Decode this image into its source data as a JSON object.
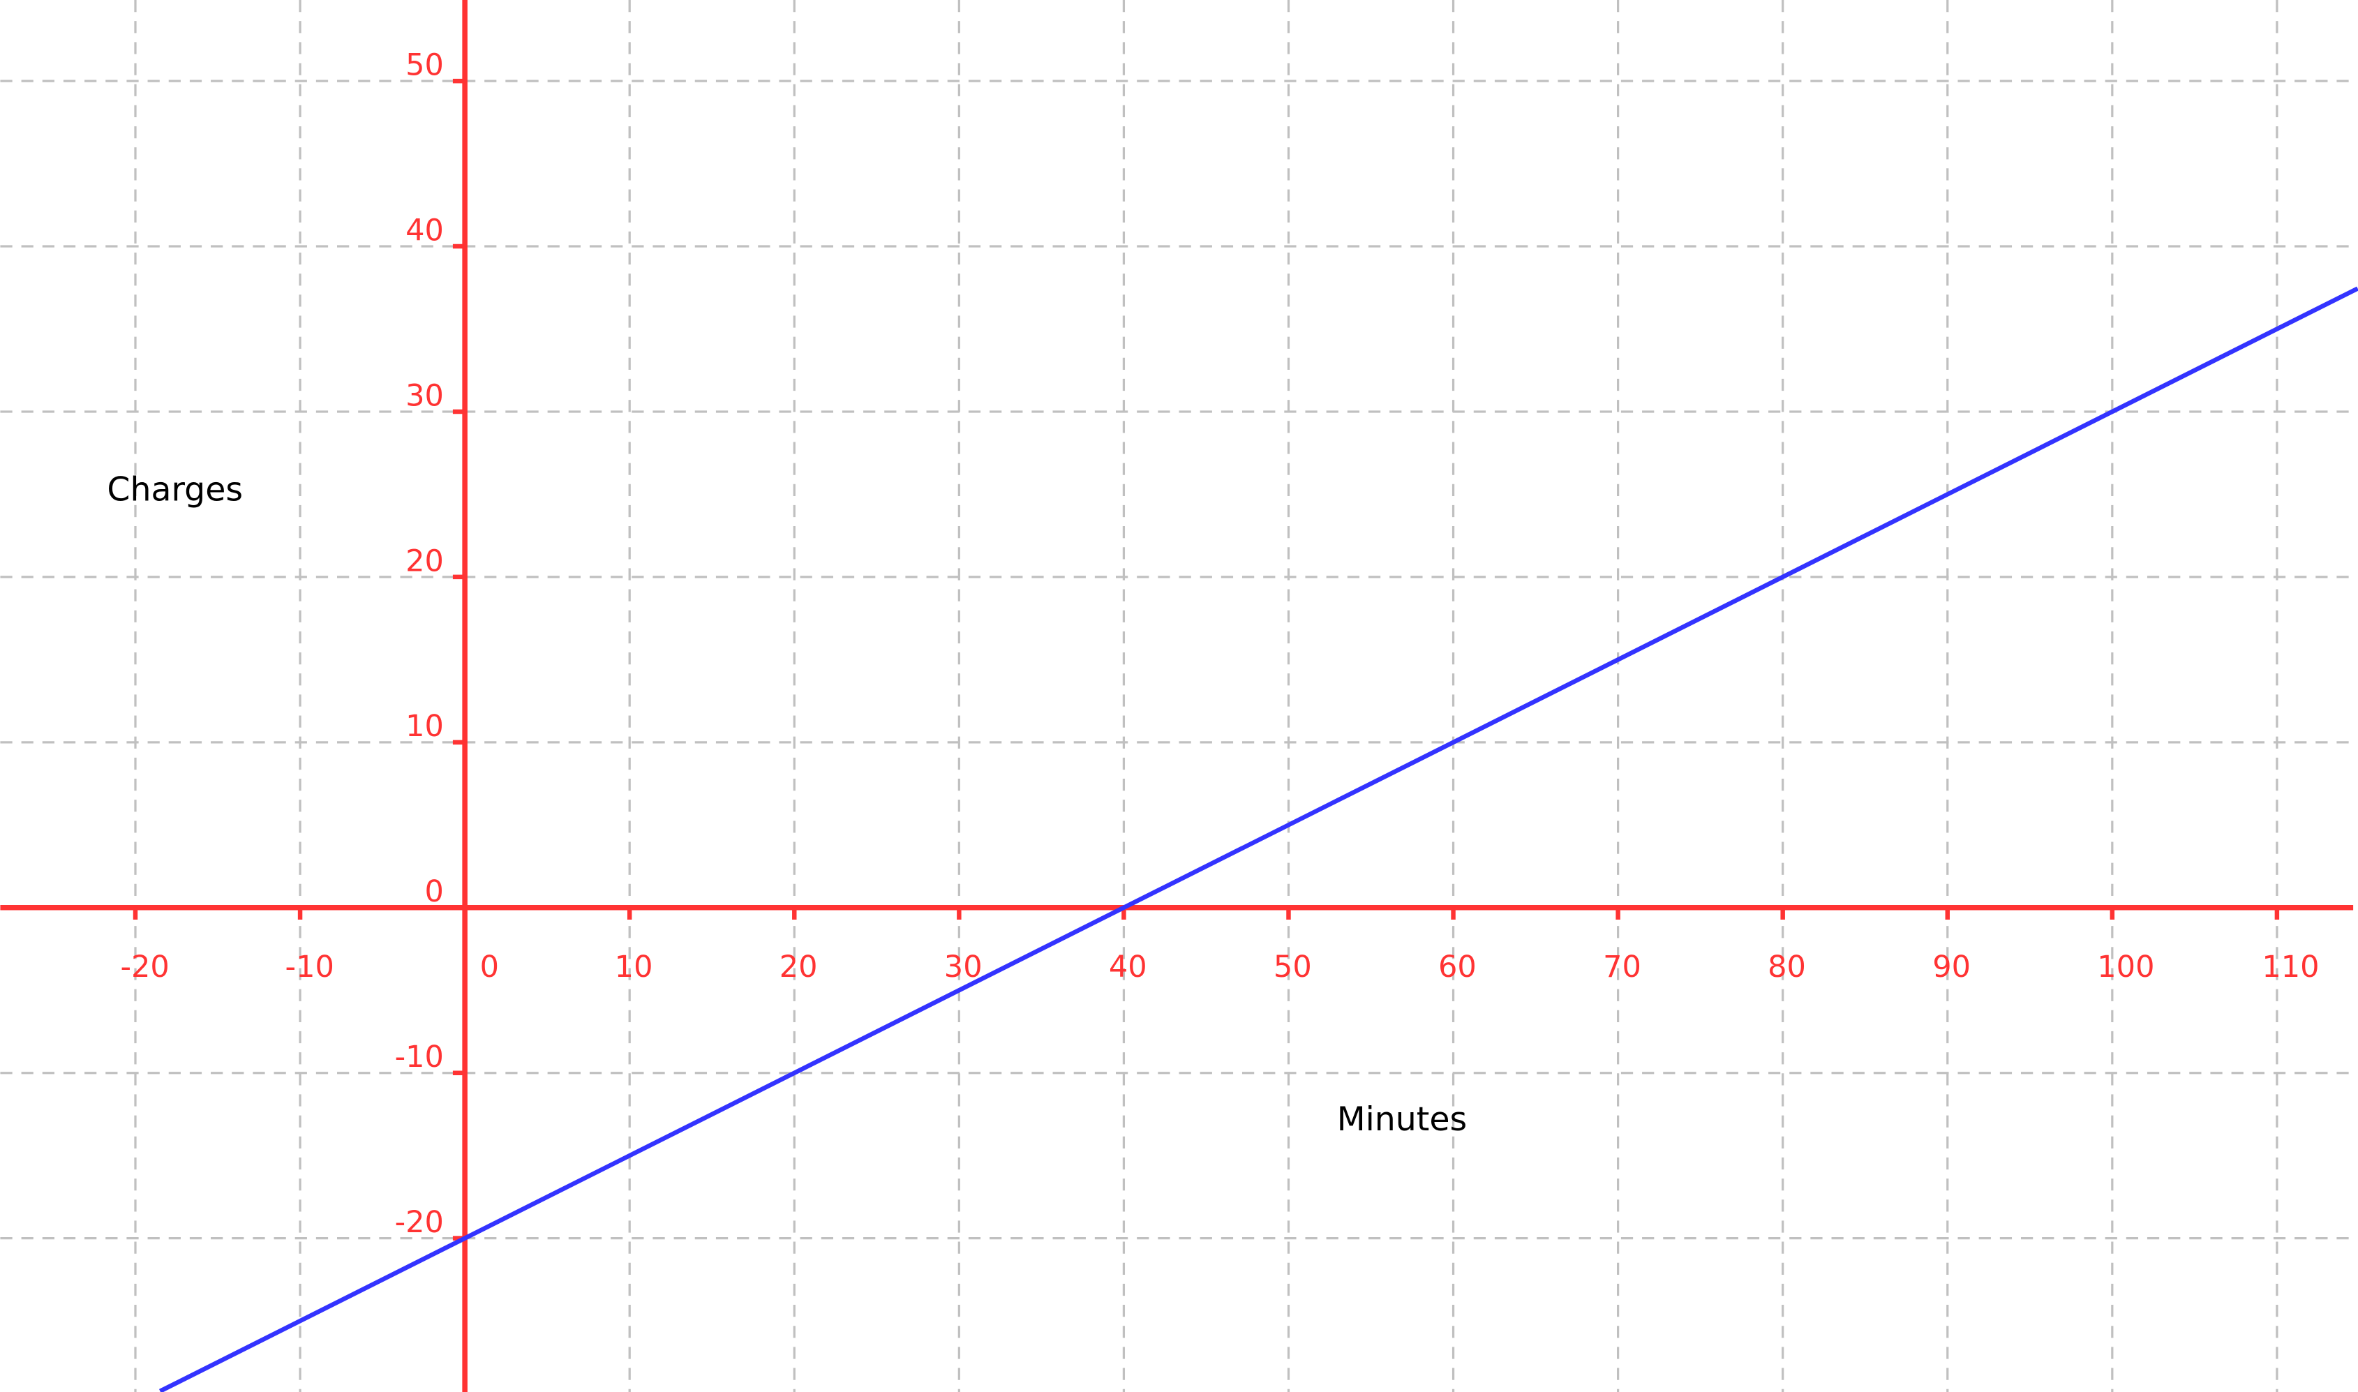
{
  "chart_data": {
    "type": "line",
    "xlabel": "Minutes",
    "ylabel": "Charges",
    "xlim": [
      -28.2,
      114.9
    ],
    "ylim": [
      -29.3,
      54.9
    ],
    "grid": true,
    "x_ticks": [
      -20,
      -10,
      0,
      10,
      20,
      30,
      40,
      50,
      60,
      70,
      80,
      90,
      100,
      110
    ],
    "y_ticks": [
      -20,
      -10,
      0,
      10,
      20,
      30,
      40,
      50
    ],
    "x_tick_labels": [
      "-20",
      "-10",
      "0",
      "10",
      "20",
      "30",
      "40",
      "50",
      "60",
      "70",
      "80",
      "90",
      "100",
      "110"
    ],
    "y_tick_labels": [
      "-20",
      "-10",
      "0",
      "10",
      "20",
      "30",
      "40",
      "50"
    ],
    "series": [
      {
        "equation": "y = 0.5x - 20",
        "slope": 0.5,
        "intercept": -20,
        "x": [
          -18.5,
          114.9
        ],
        "y": [
          -29.25,
          37.45
        ]
      }
    ],
    "colors": {
      "axis": "#ff3333",
      "line": "#3333ff",
      "grid": "#c0c0c0"
    }
  }
}
